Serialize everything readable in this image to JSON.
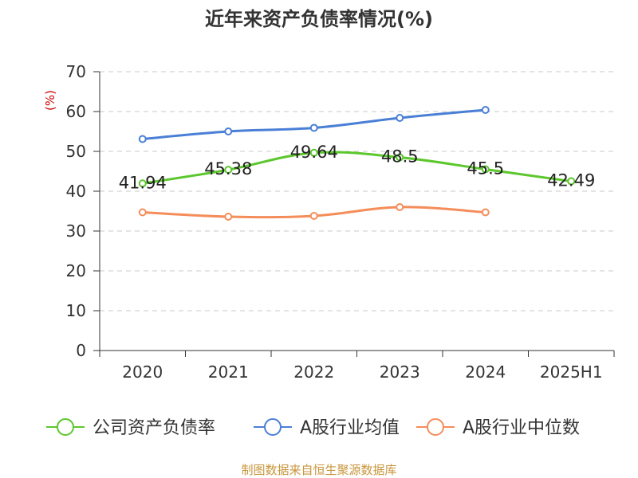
{
  "chart_data": {
    "type": "line",
    "title": "近年来资产负债率情况(%)",
    "ylabel": "(%)",
    "xlabel": "",
    "ylim": [
      0,
      70
    ],
    "yticks": [
      0,
      10,
      20,
      30,
      40,
      50,
      60,
      70
    ],
    "categories": [
      "2020",
      "2021",
      "2022",
      "2023",
      "2024",
      "2025H1"
    ],
    "grid": true,
    "legend_position": "bottom",
    "series": [
      {
        "name": "公司资产负债率",
        "color": "#5cc72d",
        "values": [
          41.94,
          45.38,
          49.64,
          48.5,
          45.5,
          42.49
        ],
        "labels": [
          "41.94",
          "45.38",
          "49.64",
          "48.5",
          "45.5",
          "42.49"
        ]
      },
      {
        "name": "A股行业均值",
        "color": "#4a7fd6",
        "values": [
          53.1,
          55.0,
          55.9,
          58.4,
          60.4,
          null
        ]
      },
      {
        "name": "A股行业中位数",
        "color": "#f58d5a",
        "values": [
          34.7,
          33.6,
          33.8,
          36.0,
          34.7,
          null
        ]
      }
    ]
  },
  "source": "制图数据来自恒生聚源数据库"
}
